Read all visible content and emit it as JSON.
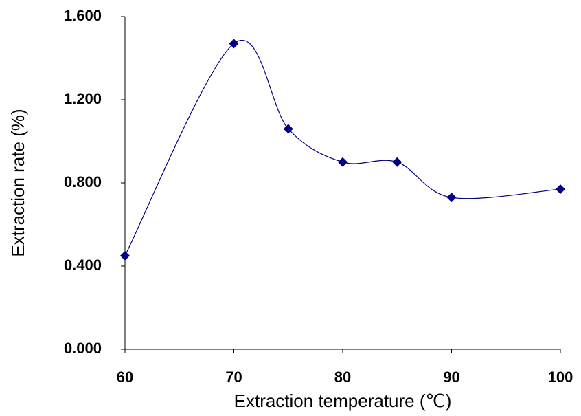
{
  "chart_data": {
    "type": "line",
    "x_label": "Extraction temperature (℃)",
    "y_label": "Extraction rate (%)",
    "x": [
      60,
      70,
      75,
      80,
      85,
      90,
      100
    ],
    "series": [
      {
        "name": "Extraction rate",
        "color": "#000080",
        "values": [
          0.45,
          1.47,
          1.06,
          0.9,
          0.9,
          0.73,
          0.77
        ]
      }
    ],
    "smooth": true,
    "marker": "diamond",
    "xlim": [
      60,
      100
    ],
    "xticks": [
      60,
      70,
      80,
      90,
      100
    ],
    "ylim": [
      0,
      1.6
    ],
    "yticks": [
      {
        "value": 0,
        "label": "0.000"
      },
      {
        "value": 0.4,
        "label": "0.400"
      },
      {
        "value": 0.8,
        "label": "0.800"
      },
      {
        "value": 1.2,
        "label": "1.200"
      },
      {
        "value": 1.6,
        "label": "1.600"
      }
    ],
    "grid": false
  }
}
